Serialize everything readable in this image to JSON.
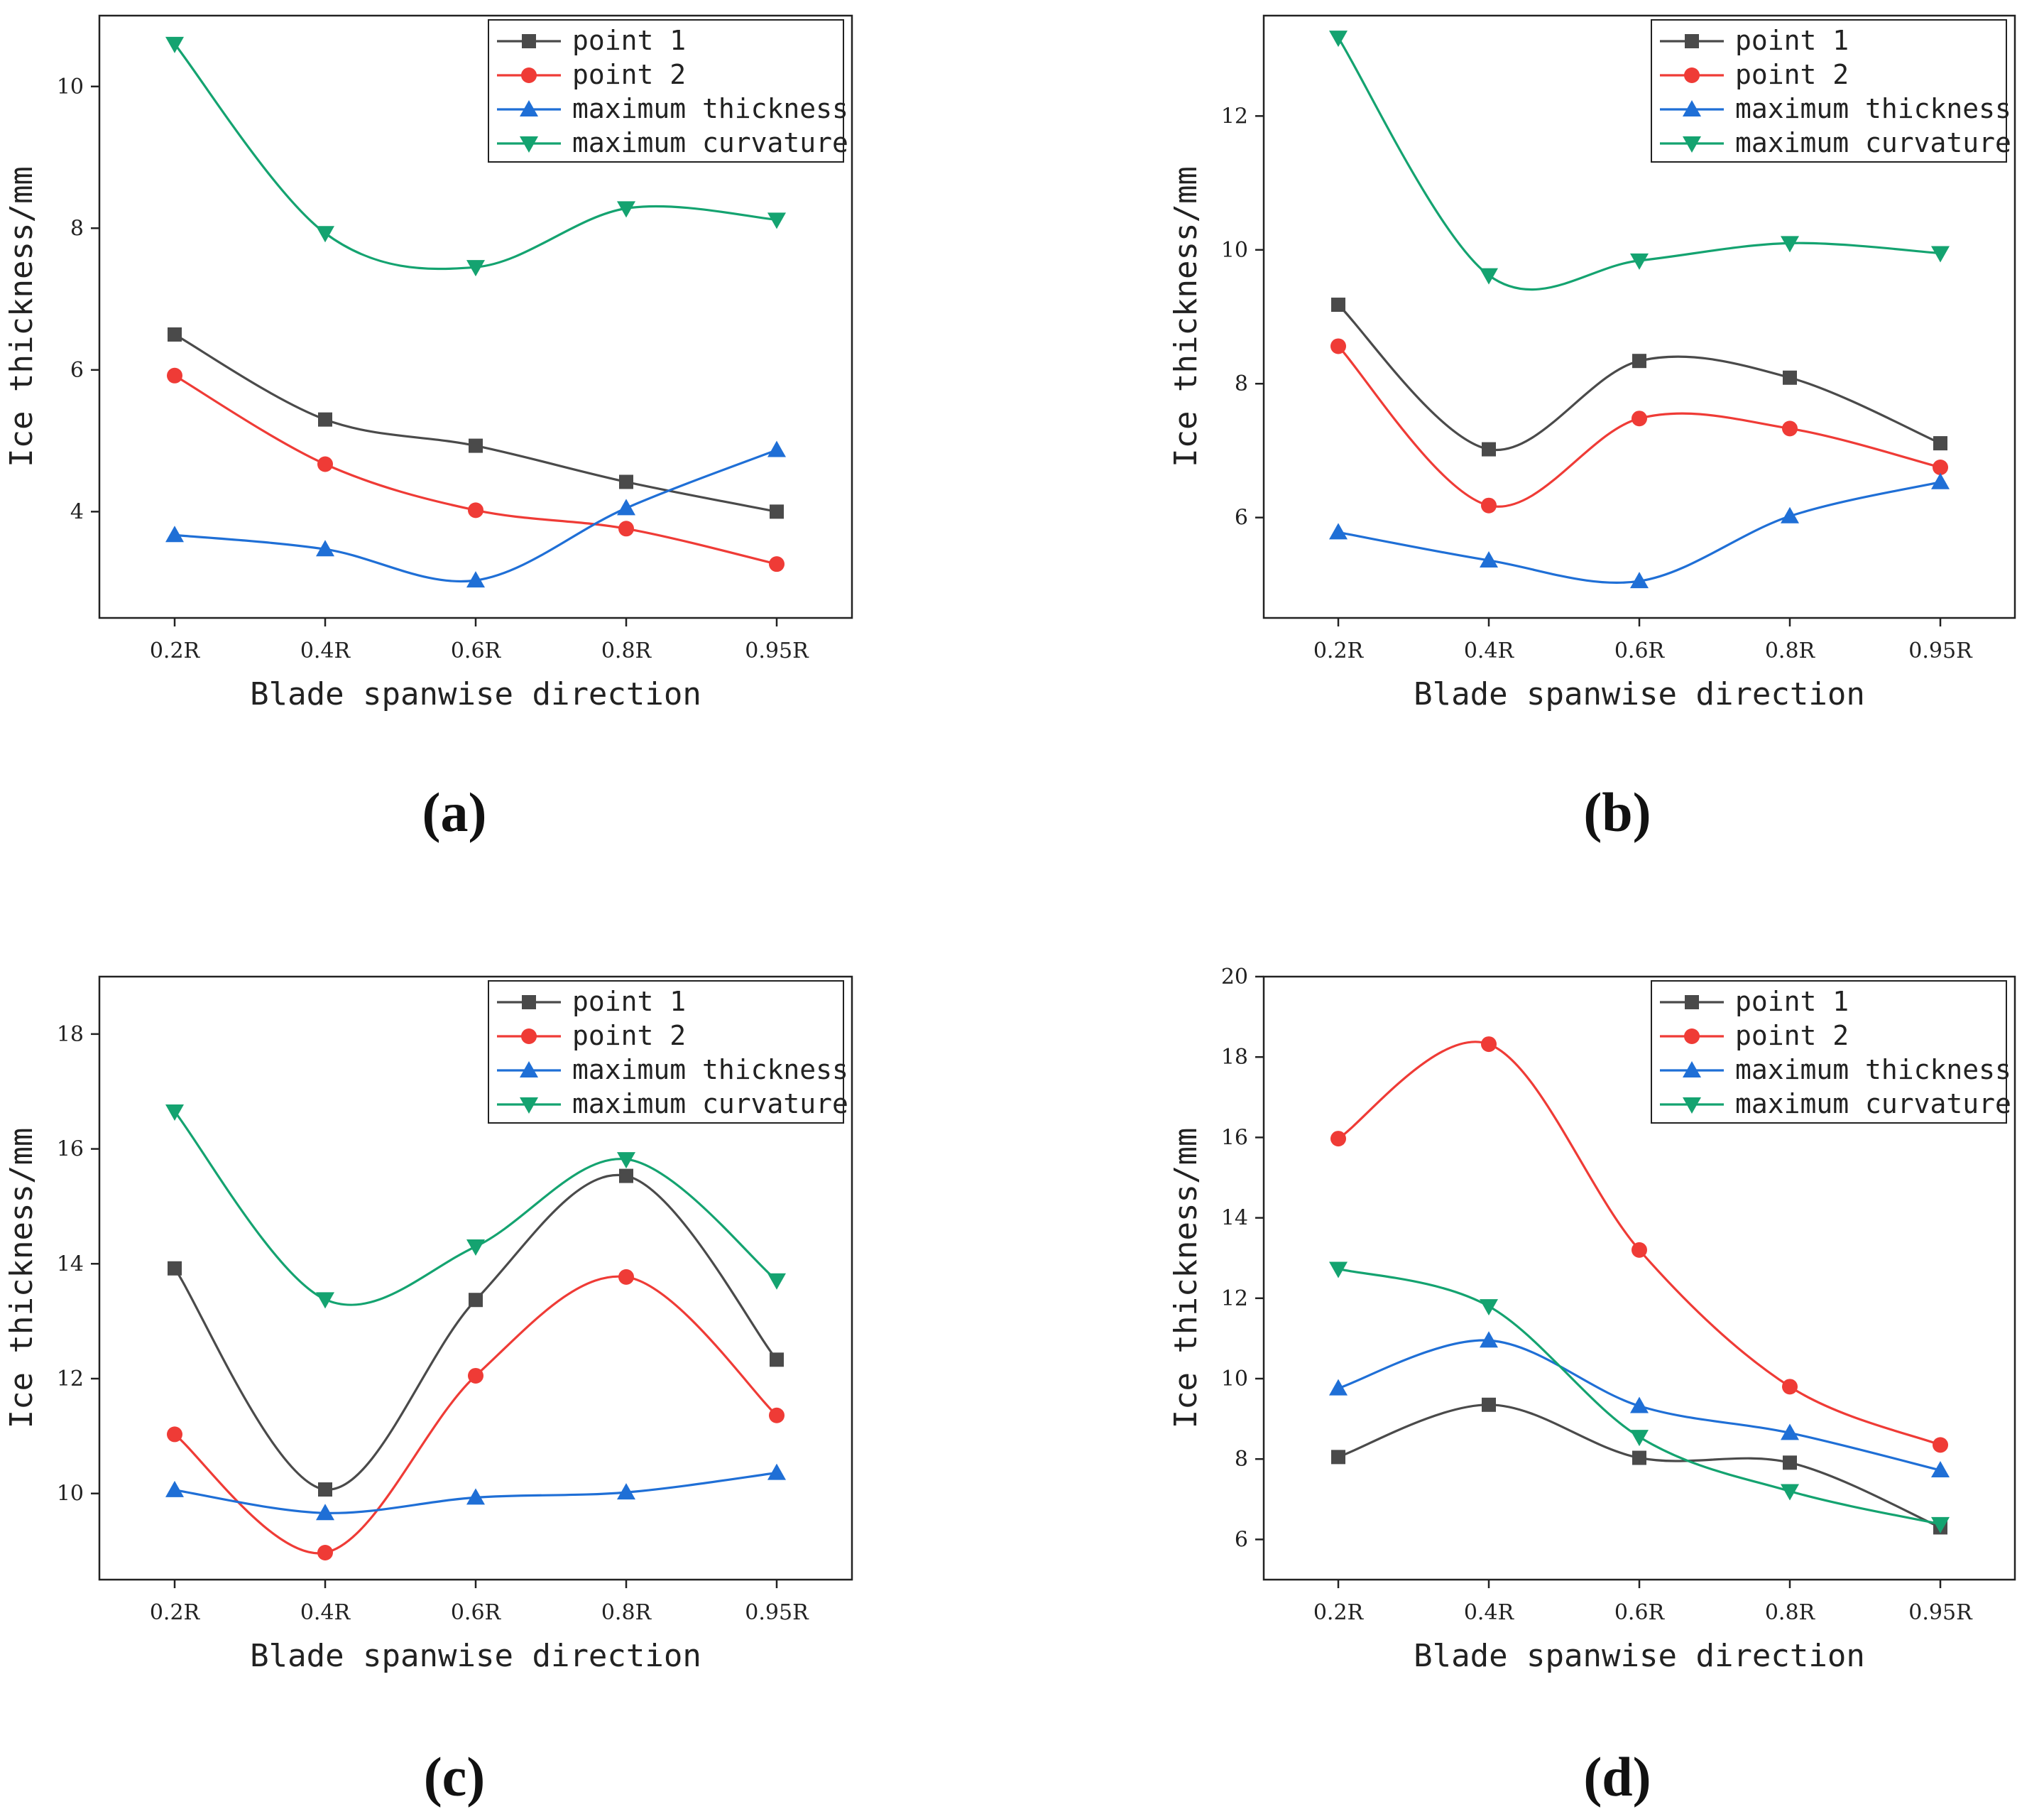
{
  "legend_labels": [
    "point 1",
    "point 2",
    "maximum thickness",
    "maximum curvature"
  ],
  "colors": {
    "point 1": "#4a4a4a",
    "point 2": "#ef3b36",
    "maximum thickness": "#1f6fd6",
    "maximum curvature": "#14a370"
  },
  "markers": {
    "point 1": "square",
    "point 2": "circle",
    "maximum thickness": "triangle-up",
    "maximum curvature": "triangle-down"
  },
  "chart_data": [
    {
      "panel": "(a)",
      "type": "line",
      "xlabel": "Blade spanwise direction",
      "ylabel": "Ice thickness/mm",
      "categories": [
        "0.2R",
        "0.4R",
        "0.6R",
        "0.8R",
        "0.95R"
      ],
      "ylim": [
        2.5,
        11
      ],
      "yticks": [
        4,
        6,
        8,
        10
      ],
      "legend_position": "top-right",
      "series": [
        {
          "name": "point 1",
          "values": [
            6.5,
            5.3,
            4.93,
            4.42,
            4.0
          ]
        },
        {
          "name": "point 2",
          "values": [
            5.92,
            4.67,
            4.02,
            3.76,
            3.26
          ]
        },
        {
          "name": "maximum thickness",
          "values": [
            3.67,
            3.47,
            3.03,
            4.05,
            4.87
          ]
        },
        {
          "name": "maximum curvature",
          "values": [
            10.6,
            7.93,
            7.45,
            8.28,
            8.12
          ]
        }
      ]
    },
    {
      "panel": "(b)",
      "type": "line",
      "xlabel": "Blade spanwise direction",
      "ylabel": "Ice thickness/mm",
      "categories": [
        "0.2R",
        "0.4R",
        "0.6R",
        "0.8R",
        "0.95R"
      ],
      "ylim": [
        4.5,
        13.5
      ],
      "yticks": [
        6,
        8,
        10,
        12
      ],
      "legend_position": "top-right",
      "series": [
        {
          "name": "point 1",
          "values": [
            9.18,
            7.02,
            8.34,
            8.09,
            7.11
          ]
        },
        {
          "name": "point 2",
          "values": [
            8.56,
            6.18,
            7.48,
            7.33,
            6.75
          ]
        },
        {
          "name": "maximum thickness",
          "values": [
            5.78,
            5.36,
            5.05,
            6.02,
            6.53
          ]
        },
        {
          "name": "maximum curvature",
          "values": [
            13.17,
            9.62,
            9.84,
            10.1,
            9.95
          ]
        }
      ]
    },
    {
      "panel": "(c)",
      "type": "line",
      "xlabel": "Blade spanwise direction",
      "ylabel": "Ice thickness/mm",
      "categories": [
        "0.2R",
        "0.4R",
        "0.6R",
        "0.8R",
        "0.95R"
      ],
      "ylim": [
        8.5,
        19
      ],
      "yticks": [
        10,
        12,
        14,
        16,
        18
      ],
      "legend_position": "top-right",
      "series": [
        {
          "name": "point 1",
          "values": [
            13.92,
            10.07,
            13.37,
            15.53,
            12.33
          ]
        },
        {
          "name": "point 2",
          "values": [
            11.03,
            8.97,
            12.05,
            13.77,
            11.36
          ]
        },
        {
          "name": "maximum thickness",
          "values": [
            10.06,
            9.66,
            9.93,
            10.02,
            10.36
          ]
        },
        {
          "name": "maximum curvature",
          "values": [
            16.65,
            13.38,
            14.3,
            15.82,
            13.71
          ]
        }
      ]
    },
    {
      "panel": "(d)",
      "type": "line",
      "xlabel": "Blade spanwise direction",
      "ylabel": "Ice thickness/mm",
      "categories": [
        "0.2R",
        "0.4R",
        "0.6R",
        "0.8R",
        "0.95R"
      ],
      "ylim": [
        5,
        20
      ],
      "yticks": [
        6,
        8,
        10,
        12,
        14,
        16,
        18,
        20
      ],
      "legend_position": "top-right",
      "series": [
        {
          "name": "point 1",
          "values": [
            8.05,
            9.35,
            8.03,
            7.91,
            6.3
          ]
        },
        {
          "name": "point 2",
          "values": [
            15.97,
            18.32,
            13.2,
            9.8,
            8.35
          ]
        },
        {
          "name": "maximum thickness",
          "values": [
            9.76,
            10.95,
            9.32,
            8.65,
            7.72
          ]
        },
        {
          "name": "maximum curvature",
          "values": [
            12.73,
            11.8,
            8.55,
            7.2,
            6.38
          ]
        }
      ]
    }
  ]
}
